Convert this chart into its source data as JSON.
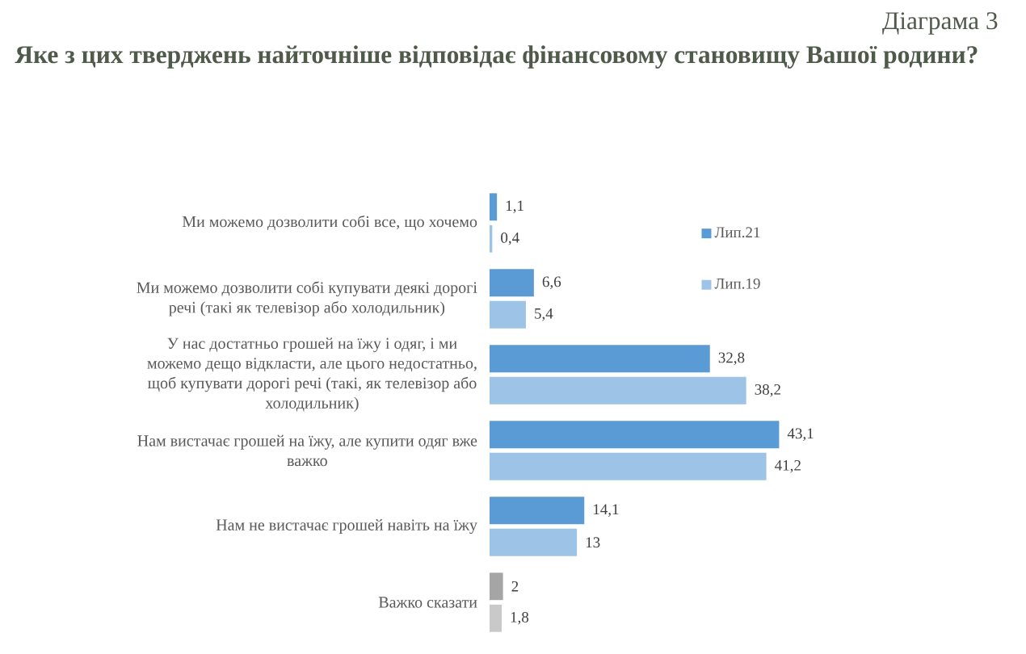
{
  "chart_data": {
    "type": "bar",
    "orientation": "horizontal",
    "title": "Яке з цих тверджень найточніше відповідає фінансовому становищу Вашої родини?",
    "annotations": [
      "Діаграма 3"
    ],
    "categories": [
      "Ми можемо дозволити собі все, що хочемо",
      "Ми можемо дозволити собі купувати деякі дорогі речі (такі як телевізор або холодильник)",
      "У нас достатньо грошей на їжу і одяг, і ми можемо дещо відкласти, але цього недостатньо, щоб купувати дорогі речі (такі, як телевізор або холодильник)",
      "Нам вистачає грошей на їжу, але купити одяг вже важко",
      "Нам не вистачає грошей навіть на їжу",
      "Важко сказати"
    ],
    "series": [
      {
        "name": "Лип.21",
        "color": "#5b9bd5",
        "colors": [
          "#5b9bd5",
          "#5b9bd5",
          "#5b9bd5",
          "#5b9bd5",
          "#5b9bd5",
          "#a5a5a5"
        ],
        "values": [
          1.1,
          6.6,
          32.8,
          43.1,
          14.1,
          2
        ],
        "value_labels": [
          "1,1",
          "6,6",
          "32,8",
          "43,1",
          "14,1",
          "2"
        ]
      },
      {
        "name": "Лип.19",
        "color": "#9dc3e6",
        "colors": [
          "#9dc3e6",
          "#9dc3e6",
          "#9dc3e6",
          "#9dc3e6",
          "#9dc3e6",
          "#c9c9c9"
        ],
        "values": [
          0.4,
          5.4,
          38.2,
          41.2,
          13,
          1.8
        ],
        "value_labels": [
          "0,4",
          "5,4",
          "38,2",
          "41,2",
          "13",
          "1,8"
        ]
      }
    ],
    "legend": "top right"
  }
}
